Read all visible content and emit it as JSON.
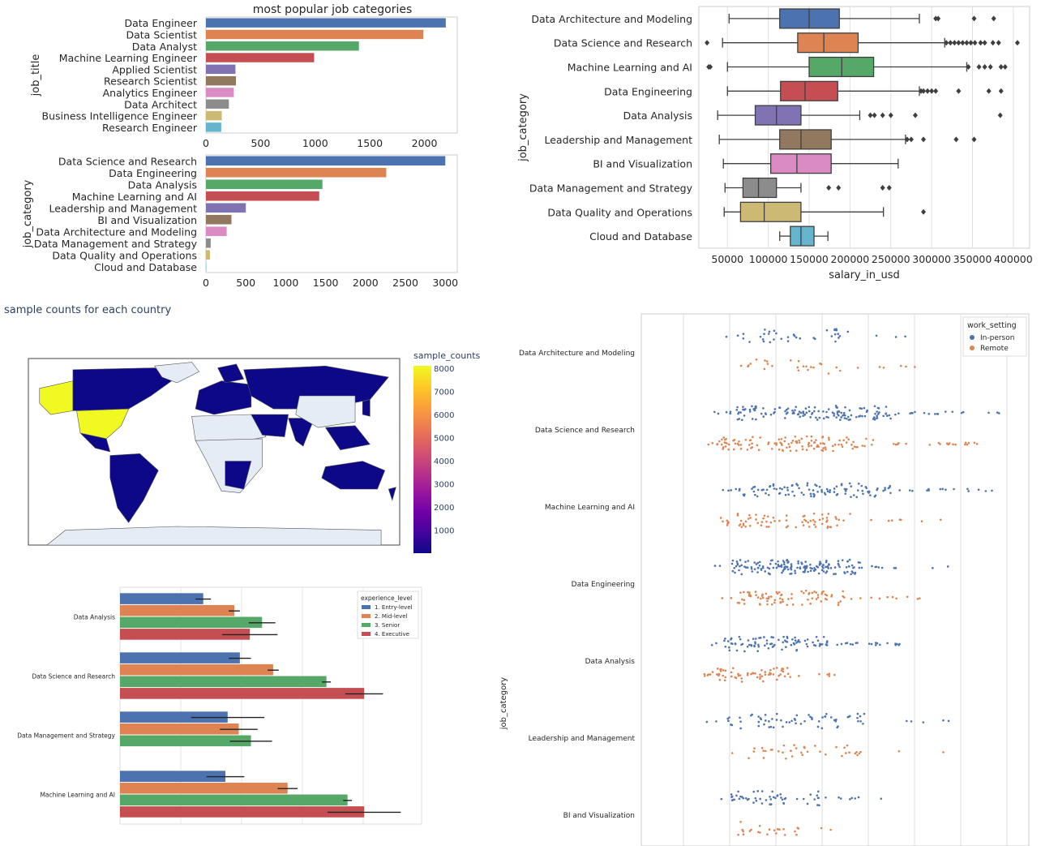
{
  "colors": {
    "palette": [
      "#4c72b0",
      "#dd8452",
      "#55a868",
      "#c44e52",
      "#8172b3",
      "#937860",
      "#da8bc3",
      "#8c8c8c",
      "#ccb974",
      "#64b5cd"
    ],
    "inperson": "#4c72b0",
    "remote": "#dd8452",
    "map_land_nodata": "#e5ecf6",
    "map_ocean": "#ffffff"
  },
  "chart_data": [
    {
      "id": "job_title_counts",
      "type": "bar",
      "orientation": "horizontal",
      "title": "most popular job categories",
      "ylabel": "job_title",
      "xlabel": "",
      "xlim": [
        0,
        2300
      ],
      "xticks": [
        0,
        500,
        1000,
        1500,
        2000
      ],
      "categories": [
        "Data Engineer",
        "Data Scientist",
        "Data Analyst",
        "Machine Learning Engineer",
        "Applied Scientist",
        "Research Scientist",
        "Analytics Engineer",
        "Data Architect",
        "Business Intelligence Engineer",
        "Research Engineer"
      ],
      "values": [
        2195,
        1990,
        1400,
        990,
        270,
        275,
        255,
        210,
        145,
        140
      ]
    },
    {
      "id": "job_category_counts",
      "type": "bar",
      "orientation": "horizontal",
      "title": "",
      "ylabel": "job_category",
      "xlabel": "",
      "xlim": [
        0,
        3150
      ],
      "xticks": [
        0,
        500,
        1000,
        1500,
        2000,
        2500,
        3000
      ],
      "categories": [
        "Data Science and Research",
        "Data Engineering",
        "Data Analysis",
        "Machine Learning and AI",
        "Leadership and Management",
        "BI and Visualization",
        "Data Architecture and Modeling",
        "Data Management and Strategy",
        "Data Quality and Operations",
        "Cloud and Database"
      ],
      "values": [
        3000,
        2260,
        1460,
        1420,
        500,
        320,
        260,
        60,
        50,
        5
      ]
    },
    {
      "id": "salary_box",
      "type": "box",
      "orientation": "horizontal",
      "ylabel": "job_category",
      "xlabel": "salary_in_usd",
      "xlim": [
        15000,
        420000
      ],
      "xticks": [
        50000,
        100000,
        150000,
        200000,
        250000,
        300000,
        350000,
        400000
      ],
      "xtick_labels": [
        "50000",
        "100000",
        "150000",
        "200000",
        "250000",
        "300000",
        "350000",
        "400000"
      ],
      "categories": [
        "Data Architecture and Modeling",
        "Data Science and Research",
        "Machine Learning and AI",
        "Data Engineering",
        "Data Analysis",
        "Leadership and Management",
        "BI and Visualization",
        "Data Management and Strategy",
        "Data Quality and Operations",
        "Cloud and Database"
      ],
      "boxes": [
        {
          "whislo": 52000,
          "q1": 114000,
          "med": 150000,
          "q3": 187000,
          "whishi": 285000,
          "fliers": [
            305000,
            308000,
            352000,
            376000
          ]
        },
        {
          "whislo": 44000,
          "q1": 136000,
          "med": 168000,
          "q3": 210000,
          "whishi": 316000,
          "fliers": [
            25000,
            318000,
            323000,
            328000,
            333000,
            338000,
            343000,
            348000,
            353000,
            360000,
            365000,
            375000,
            382000,
            405000
          ]
        },
        {
          "whislo": 50000,
          "q1": 150000,
          "med": 190000,
          "q3": 229000,
          "whishi": 343000,
          "fliers": [
            27000,
            29000,
            345000,
            358000,
            365000,
            372000,
            385000,
            390000
          ]
        },
        {
          "whislo": 50000,
          "q1": 115000,
          "med": 145000,
          "q3": 185000,
          "whishi": 285000,
          "fliers": [
            287000,
            290000,
            295000,
            300000,
            305000,
            333000,
            370000,
            385000
          ]
        },
        {
          "whislo": 38000,
          "q1": 84000,
          "med": 110000,
          "q3": 140000,
          "whishi": 212000,
          "fliers": [
            225000,
            230000,
            240000,
            250000,
            280000,
            384000
          ]
        },
        {
          "whislo": 40000,
          "q1": 114000,
          "med": 140000,
          "q3": 177000,
          "whishi": 268000,
          "fliers": [
            270000,
            275000,
            290000,
            330000,
            352000
          ]
        },
        {
          "whislo": 45000,
          "q1": 103000,
          "med": 135000,
          "q3": 177000,
          "whishi": 259000,
          "fliers": []
        },
        {
          "whislo": 47000,
          "q1": 69000,
          "med": 88000,
          "q3": 110000,
          "whishi": 140000,
          "fliers": [
            174000,
            186000,
            240000,
            248000
          ]
        },
        {
          "whislo": 46000,
          "q1": 66000,
          "med": 95000,
          "q3": 140000,
          "whishi": 241000,
          "fliers": [
            290000
          ]
        },
        {
          "whislo": 114000,
          "q1": 127000,
          "med": 140000,
          "q3": 156000,
          "whishi": 173000,
          "fliers": []
        }
      ]
    },
    {
      "id": "country_map",
      "type": "choropleth",
      "title": "sample counts for each country",
      "colorbar_title": "sample_counts",
      "colorbar_range": [
        0,
        8100
      ],
      "colorbar_ticks": [
        1000,
        2000,
        3000,
        4000,
        5000,
        6000,
        7000,
        8000
      ],
      "colorscale": [
        "#0d0887",
        "#46039f",
        "#7201a8",
        "#9c179e",
        "#bd3786",
        "#d8576b",
        "#ed7953",
        "#fb9f3a",
        "#fdca26",
        "#f0f921"
      ],
      "highlight": {
        "name": "United States",
        "value": 8000
      }
    },
    {
      "id": "salary_by_experience",
      "type": "bar",
      "orientation": "horizontal",
      "title": "",
      "legend_title": "experience_level",
      "legend_position": "top-right",
      "xlim": [
        0,
        500000
      ],
      "categories": [
        "Data Analysis",
        "Data Science and Research",
        "Data Management and Strategy",
        "Machine Learning and AI"
      ],
      "series": [
        {
          "name": "1. Entry-level",
          "values": [
            75000,
            108000,
            97000,
            95000
          ],
          "err": [
            7000,
            10000,
            33000,
            17000
          ]
        },
        {
          "name": "2. Mid-level",
          "values": [
            103000,
            138000,
            107000,
            151000
          ],
          "err": [
            5000,
            5000,
            17000,
            9000
          ]
        },
        {
          "name": "3. Senior",
          "values": [
            128000,
            186000,
            118000,
            205000
          ],
          "err": [
            12000,
            4000,
            19000,
            4000
          ]
        },
        {
          "name": "4. Executive",
          "values": [
            117000,
            220000,
            null,
            220000
          ],
          "err": [
            25000,
            17000,
            null,
            33000
          ]
        }
      ]
    },
    {
      "id": "salary_swarm",
      "type": "scatter",
      "style": "swarm",
      "orientation": "horizontal",
      "ylabel": "job_category",
      "legend_title": "work_setting",
      "legend_position": "top-right",
      "xlim": [
        0,
        420000
      ],
      "categories": [
        "Data Architecture and Modeling",
        "Data Science and Research",
        "Machine Learning and AI",
        "Data Engineering",
        "Data Analysis",
        "Leadership and Management",
        "BI and Visualization"
      ],
      "series": [
        {
          "name": "In-person",
          "spread": [
            [
              50000,
              300000
            ],
            [
              40000,
              400000
            ],
            [
              50000,
              390000
            ],
            [
              40000,
              330000
            ],
            [
              35000,
              270000
            ],
            [
              30000,
              350000
            ],
            [
              40000,
              250000
            ]
          ],
          "density": [
            40,
            160,
            120,
            170,
            110,
            70,
            60
          ]
        },
        {
          "name": "Remote",
          "spread": [
            [
              65000,
              290000
            ],
            [
              20000,
              370000
            ],
            [
              20000,
              330000
            ],
            [
              50000,
              300000
            ],
            [
              25000,
              200000
            ],
            [
              55000,
              330000
            ],
            [
              55000,
              200000
            ]
          ],
          "density": [
            30,
            140,
            80,
            90,
            70,
            40,
            25
          ]
        }
      ]
    }
  ]
}
